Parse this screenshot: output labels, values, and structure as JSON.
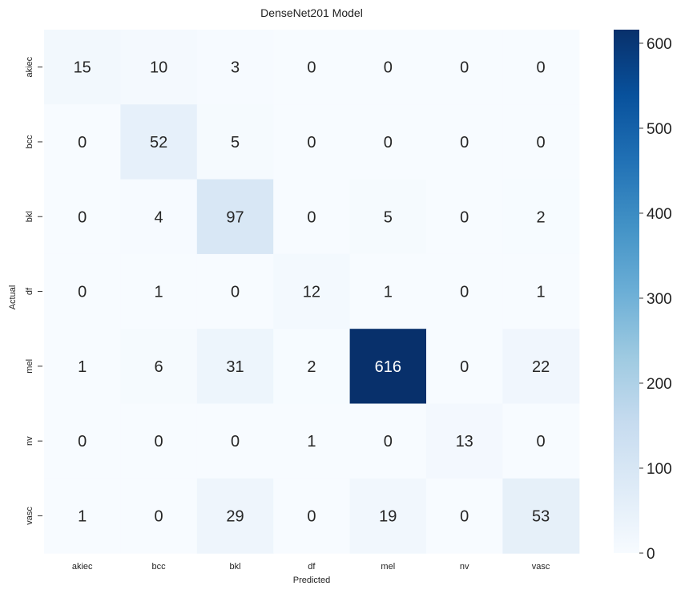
{
  "chart_data": {
    "type": "heatmap",
    "title": "DenseNet201 Model",
    "xlabel": "Predicted",
    "ylabel": "Actual",
    "x_categories": [
      "akiec",
      "bcc",
      "bkl",
      "df",
      "mel",
      "nv",
      "vasc"
    ],
    "y_categories": [
      "akiec",
      "bcc",
      "bkl",
      "df",
      "mel",
      "nv",
      "vasc"
    ],
    "values": [
      [
        15,
        10,
        3,
        0,
        0,
        0,
        0
      ],
      [
        0,
        52,
        5,
        0,
        0,
        0,
        0
      ],
      [
        0,
        4,
        97,
        0,
        5,
        0,
        2
      ],
      [
        0,
        1,
        0,
        12,
        1,
        0,
        1
      ],
      [
        1,
        6,
        31,
        2,
        616,
        0,
        22
      ],
      [
        0,
        0,
        0,
        1,
        0,
        13,
        0
      ],
      [
        1,
        0,
        29,
        0,
        19,
        0,
        53
      ]
    ],
    "colorbar": {
      "colormap": "Blues",
      "range": [
        0,
        616
      ],
      "ticks": [
        0,
        100,
        200,
        300,
        400,
        500,
        600
      ]
    }
  }
}
